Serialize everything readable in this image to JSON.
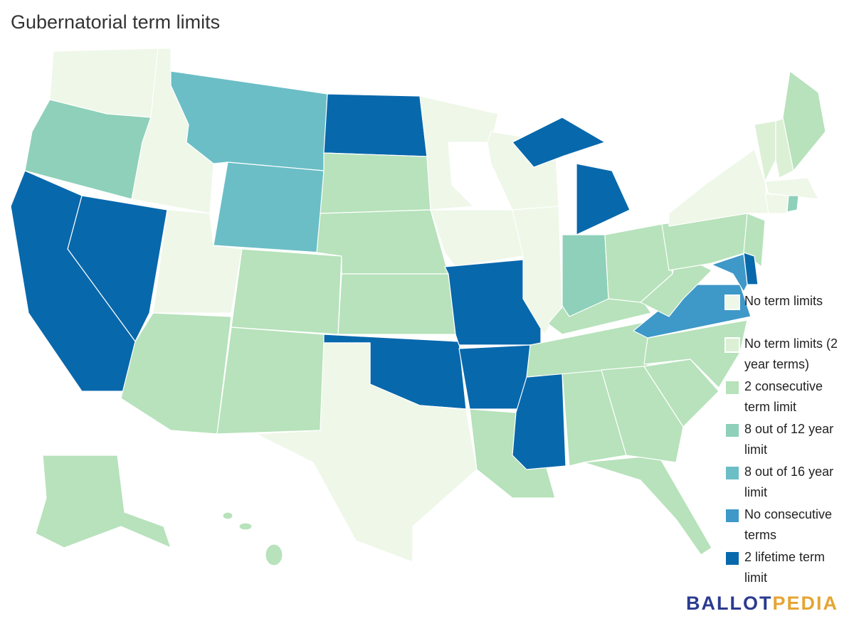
{
  "header": {
    "title": "Gubernatorial term limits"
  },
  "legend": [
    {
      "label": "No term limits",
      "color": "#eef7e8"
    },
    {
      "label": "No term limits (2 year terms)",
      "color": "#dcf0d6"
    },
    {
      "label": "2 consecutive term limit",
      "color": "#b7e2bb"
    },
    {
      "label": "8 out of 12 year limit",
      "color": "#8ed0b9"
    },
    {
      "label": "8 out of 16 year limit",
      "color": "#6bbec6"
    },
    {
      "label": "No consecutive terms",
      "color": "#3e98c8"
    },
    {
      "label": "2 lifetime term limit",
      "color": "#0868ac"
    }
  ],
  "brand": {
    "part1": "BALLOT",
    "part2": "PEDIA"
  }
}
